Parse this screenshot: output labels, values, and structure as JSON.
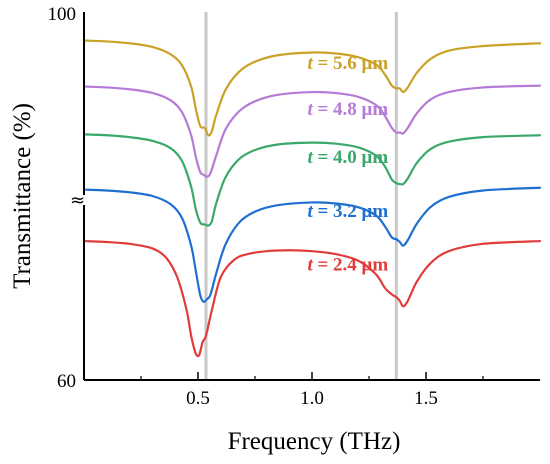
{
  "chart_data": {
    "type": "line",
    "title": "",
    "xlabel": "Frequency (THz)",
    "ylabel": "Transmittance (%)",
    "xlim": [
      0,
      2.0
    ],
    "ylim": [
      60,
      100
    ],
    "x_ticks": [
      0.5,
      1.0,
      1.5
    ],
    "x_tick_labels": [
      "0.5",
      "1.0",
      "1.5"
    ],
    "y_tick_labels": [
      "60",
      "100"
    ],
    "axis_break_symbol": "≈",
    "reference_lines_x": [
      0.535,
      1.37
    ],
    "grid": false,
    "legend": "none",
    "series": [
      {
        "name": "t = 5.6 μm",
        "annotation_prefix": "t",
        "annotation_rest": " = 5.6 μm",
        "color": "#c9a227",
        "x": [
          0.0,
          0.1,
          0.2,
          0.3,
          0.38,
          0.43,
          0.47,
          0.49,
          0.51,
          0.53,
          0.545,
          0.56,
          0.58,
          0.62,
          0.68,
          0.75,
          0.85,
          1.0,
          1.1,
          1.2,
          1.28,
          1.32,
          1.35,
          1.37,
          1.385,
          1.4,
          1.42,
          1.46,
          1.52,
          1.6,
          1.75,
          2.0
        ],
        "y": [
          96.9,
          96.8,
          96.6,
          96.2,
          95.4,
          94.2,
          91.9,
          89.5,
          87.6,
          87.4,
          86.6,
          87.0,
          88.8,
          91.5,
          93.5,
          94.6,
          95.3,
          95.6,
          95.5,
          95.1,
          94.3,
          93.2,
          92.0,
          91.7,
          91.7,
          91.3,
          91.8,
          93.4,
          94.9,
          95.8,
          96.3,
          96.6
        ]
      },
      {
        "name": "t = 4.8 μm",
        "annotation_prefix": "t",
        "annotation_rest": " = 4.8 μm",
        "color": "#b57bd6",
        "x": [
          0.0,
          0.1,
          0.2,
          0.3,
          0.38,
          0.43,
          0.47,
          0.49,
          0.51,
          0.525,
          0.54,
          0.555,
          0.58,
          0.62,
          0.68,
          0.75,
          0.85,
          1.0,
          1.1,
          1.2,
          1.28,
          1.32,
          1.35,
          1.37,
          1.385,
          1.4,
          1.42,
          1.46,
          1.52,
          1.6,
          1.75,
          2.0
        ],
        "y": [
          91.9,
          91.8,
          91.6,
          91.2,
          90.4,
          89.1,
          86.6,
          84.3,
          82.6,
          82.3,
          82.1,
          82.5,
          84.4,
          87.2,
          89.2,
          90.3,
          91.0,
          91.3,
          91.2,
          90.8,
          89.9,
          88.7,
          87.4,
          86.9,
          86.9,
          86.8,
          87.4,
          89.0,
          90.5,
          91.3,
          91.8,
          92.0
        ]
      },
      {
        "name": "t = 4.0 μm",
        "annotation_prefix": "t",
        "annotation_rest": " = 4.0 μm",
        "color": "#3aa86a",
        "x": [
          0.0,
          0.1,
          0.2,
          0.3,
          0.38,
          0.43,
          0.47,
          0.49,
          0.51,
          0.53,
          0.545,
          0.56,
          0.58,
          0.62,
          0.68,
          0.75,
          0.85,
          1.0,
          1.1,
          1.2,
          1.28,
          1.32,
          1.35,
          1.37,
          1.385,
          1.4,
          1.42,
          1.46,
          1.52,
          1.6,
          1.75,
          2.0
        ],
        "y": [
          86.7,
          86.6,
          86.4,
          86.0,
          85.2,
          83.8,
          81.0,
          78.6,
          77.1,
          76.9,
          76.8,
          77.2,
          79.2,
          82.0,
          84.0,
          85.0,
          85.6,
          85.8,
          85.7,
          85.3,
          84.4,
          83.2,
          81.8,
          81.4,
          81.3,
          81.3,
          81.9,
          83.6,
          85.1,
          85.9,
          86.4,
          86.6
        ]
      },
      {
        "name": "t = 3.2 μm",
        "annotation_prefix": "t",
        "annotation_rest": " = 3.2 μm",
        "color": "#1f6fd1",
        "x": [
          0.0,
          0.1,
          0.2,
          0.3,
          0.38,
          0.43,
          0.47,
          0.49,
          0.51,
          0.525,
          0.54,
          0.555,
          0.58,
          0.62,
          0.68,
          0.75,
          0.85,
          1.0,
          1.1,
          1.2,
          1.28,
          1.32,
          1.35,
          1.37,
          1.385,
          1.4,
          1.42,
          1.46,
          1.52,
          1.6,
          1.75,
          2.0
        ],
        "y": [
          80.7,
          80.6,
          80.4,
          80.0,
          79.1,
          77.6,
          74.6,
          71.9,
          69.2,
          68.5,
          68.8,
          69.3,
          71.6,
          74.7,
          77.1,
          78.3,
          79.0,
          79.3,
          79.2,
          78.8,
          77.9,
          76.7,
          75.5,
          75.3,
          75.0,
          74.6,
          75.2,
          77.0,
          78.8,
          79.9,
          80.6,
          80.9
        ]
      },
      {
        "name": "t = 2.4 μm",
        "annotation_prefix": "t",
        "annotation_rest": " = 2.4 μm",
        "color": "#e03c3c",
        "x": [
          0.0,
          0.1,
          0.2,
          0.3,
          0.36,
          0.41,
          0.45,
          0.47,
          0.49,
          0.505,
          0.52,
          0.535,
          0.56,
          0.6,
          0.66,
          0.72,
          0.8,
          0.9,
          1.0,
          1.1,
          1.2,
          1.28,
          1.32,
          1.35,
          1.37,
          1.385,
          1.4,
          1.42,
          1.46,
          1.52,
          1.6,
          1.75,
          2.0
        ],
        "y": [
          75.1,
          75.0,
          74.8,
          74.3,
          73.3,
          71.1,
          67.6,
          64.8,
          62.9,
          62.7,
          64.1,
          64.8,
          67.5,
          71.2,
          73.1,
          73.7,
          74.0,
          74.1,
          74.0,
          73.7,
          73.0,
          71.5,
          70.0,
          69.3,
          69.0,
          68.6,
          68.0,
          68.6,
          70.7,
          72.7,
          74.0,
          74.8,
          75.1
        ]
      }
    ]
  }
}
